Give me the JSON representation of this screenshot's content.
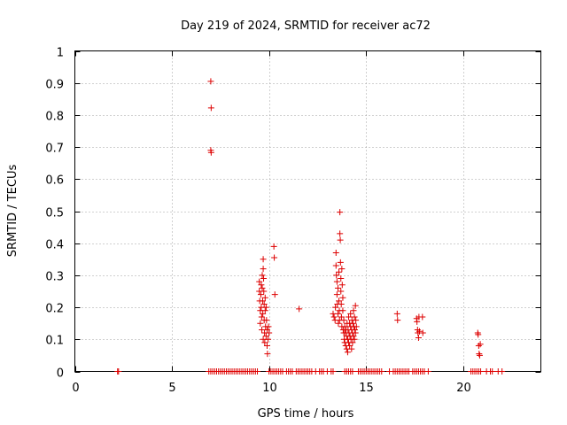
{
  "chart_data": {
    "type": "scatter",
    "title": "Day 219 of 2024, SRMTID for receiver ac72",
    "xlabel": "GPS time / hours",
    "ylabel": "SRMTID / TECUs",
    "xlim": [
      0,
      24
    ],
    "ylim": [
      0,
      1
    ],
    "xticks": [
      0,
      5,
      10,
      15,
      20
    ],
    "yticks": [
      0,
      0.1,
      0.2,
      0.3,
      0.4,
      0.5,
      0.6,
      0.7,
      0.8,
      0.9,
      1
    ],
    "grid": true,
    "marker": "+",
    "color": "#dd0000",
    "series": [
      {
        "points": [
          [
            2.2,
            0
          ],
          [
            2.25,
            0
          ],
          [
            6.9,
            0
          ],
          [
            7.0,
            0
          ],
          [
            7.1,
            0
          ],
          [
            7.2,
            0
          ],
          [
            7.3,
            0
          ],
          [
            7.4,
            0
          ],
          [
            7.5,
            0
          ],
          [
            7.6,
            0
          ],
          [
            7.7,
            0
          ],
          [
            7.8,
            0
          ],
          [
            7.9,
            0
          ],
          [
            8.0,
            0
          ],
          [
            8.1,
            0
          ],
          [
            8.2,
            0
          ],
          [
            8.3,
            0
          ],
          [
            8.4,
            0
          ],
          [
            8.5,
            0
          ],
          [
            8.6,
            0
          ],
          [
            8.7,
            0
          ],
          [
            8.8,
            0
          ],
          [
            8.9,
            0
          ],
          [
            9.0,
            0
          ],
          [
            9.1,
            0
          ],
          [
            9.2,
            0
          ],
          [
            9.3,
            0
          ],
          [
            9.4,
            0
          ],
          [
            10.0,
            0
          ],
          [
            10.1,
            0
          ],
          [
            10.2,
            0
          ],
          [
            10.3,
            0
          ],
          [
            10.4,
            0
          ],
          [
            10.5,
            0
          ],
          [
            10.6,
            0
          ],
          [
            10.7,
            0
          ],
          [
            10.9,
            0
          ],
          [
            11.0,
            0
          ],
          [
            11.1,
            0
          ],
          [
            11.2,
            0
          ],
          [
            11.4,
            0
          ],
          [
            11.5,
            0
          ],
          [
            11.6,
            0
          ],
          [
            11.7,
            0
          ],
          [
            11.8,
            0
          ],
          [
            11.9,
            0
          ],
          [
            12.0,
            0
          ],
          [
            12.1,
            0
          ],
          [
            12.2,
            0
          ],
          [
            12.4,
            0
          ],
          [
            12.6,
            0
          ],
          [
            12.7,
            0
          ],
          [
            12.8,
            0
          ],
          [
            13.0,
            0
          ],
          [
            13.2,
            0
          ],
          [
            13.3,
            0
          ],
          [
            13.9,
            0
          ],
          [
            14.0,
            0
          ],
          [
            14.1,
            0
          ],
          [
            14.2,
            0
          ],
          [
            14.3,
            0
          ],
          [
            14.6,
            0
          ],
          [
            14.7,
            0
          ],
          [
            14.8,
            0
          ],
          [
            14.9,
            0
          ],
          [
            15.0,
            0
          ],
          [
            15.1,
            0
          ],
          [
            15.2,
            0
          ],
          [
            15.3,
            0
          ],
          [
            15.4,
            0
          ],
          [
            15.5,
            0
          ],
          [
            15.6,
            0
          ],
          [
            15.7,
            0
          ],
          [
            15.8,
            0
          ],
          [
            16.2,
            0
          ],
          [
            16.4,
            0
          ],
          [
            16.5,
            0
          ],
          [
            16.6,
            0
          ],
          [
            16.7,
            0
          ],
          [
            16.8,
            0
          ],
          [
            16.9,
            0
          ],
          [
            17.0,
            0
          ],
          [
            17.1,
            0
          ],
          [
            17.2,
            0
          ],
          [
            17.4,
            0
          ],
          [
            17.5,
            0
          ],
          [
            17.6,
            0
          ],
          [
            17.7,
            0
          ],
          [
            17.8,
            0
          ],
          [
            17.9,
            0
          ],
          [
            18.0,
            0
          ],
          [
            18.2,
            0
          ],
          [
            20.4,
            0
          ],
          [
            20.5,
            0
          ],
          [
            20.6,
            0
          ],
          [
            20.7,
            0
          ],
          [
            20.8,
            0
          ],
          [
            20.9,
            0
          ],
          [
            21.2,
            0
          ],
          [
            21.4,
            0
          ],
          [
            21.5,
            0
          ],
          [
            21.8,
            0
          ],
          [
            22.0,
            0
          ],
          [
            7.0,
            0.905
          ],
          [
            7.02,
            0.822
          ],
          [
            7.0,
            0.69
          ],
          [
            7.02,
            0.683
          ],
          [
            9.5,
            0.28
          ],
          [
            9.5,
            0.25
          ],
          [
            9.52,
            0.22
          ],
          [
            9.55,
            0.19
          ],
          [
            9.55,
            0.15
          ],
          [
            9.58,
            0.24
          ],
          [
            9.6,
            0.27
          ],
          [
            9.6,
            0.2
          ],
          [
            9.62,
            0.17
          ],
          [
            9.63,
            0.13
          ],
          [
            9.65,
            0.3
          ],
          [
            9.65,
            0.26
          ],
          [
            9.67,
            0.22
          ],
          [
            9.68,
            0.18
          ],
          [
            9.7,
            0.35
          ],
          [
            9.7,
            0.32
          ],
          [
            9.7,
            0.1
          ],
          [
            9.72,
            0.29
          ],
          [
            9.73,
            0.25
          ],
          [
            9.75,
            0.21
          ],
          [
            9.75,
            0.16
          ],
          [
            9.77,
            0.12
          ],
          [
            9.78,
            0.09
          ],
          [
            9.8,
            0.23
          ],
          [
            9.8,
            0.19
          ],
          [
            9.82,
            0.14
          ],
          [
            9.85,
            0.2
          ],
          [
            9.85,
            0.11
          ],
          [
            9.87,
            0.16
          ],
          [
            9.9,
            0.13
          ],
          [
            9.9,
            0.08
          ],
          [
            9.92,
            0.055
          ],
          [
            9.95,
            0.1
          ],
          [
            9.97,
            0.14
          ],
          [
            10.0,
            0.12
          ],
          [
            10.25,
            0.39
          ],
          [
            10.27,
            0.355
          ],
          [
            10.3,
            0.24
          ],
          [
            11.55,
            0.195
          ],
          [
            13.3,
            0.18
          ],
          [
            13.35,
            0.17
          ],
          [
            13.4,
            0.16
          ],
          [
            13.42,
            0.2
          ],
          [
            13.45,
            0.37
          ],
          [
            13.45,
            0.33
          ],
          [
            13.47,
            0.3
          ],
          [
            13.5,
            0.28
          ],
          [
            13.5,
            0.24
          ],
          [
            13.52,
            0.21
          ],
          [
            13.55,
            0.26
          ],
          [
            13.55,
            0.18
          ],
          [
            13.57,
            0.15
          ],
          [
            13.6,
            0.31
          ],
          [
            13.6,
            0.22
          ],
          [
            13.62,
            0.19
          ],
          [
            13.63,
            0.16
          ],
          [
            13.65,
            0.497
          ],
          [
            13.65,
            0.43
          ],
          [
            13.67,
            0.41
          ],
          [
            13.68,
            0.34
          ],
          [
            13.7,
            0.29
          ],
          [
            13.7,
            0.25
          ],
          [
            13.72,
            0.21
          ],
          [
            13.73,
            0.17
          ],
          [
            13.75,
            0.32
          ],
          [
            13.75,
            0.14
          ],
          [
            13.77,
            0.27
          ],
          [
            13.8,
            0.23
          ],
          [
            13.8,
            0.19
          ],
          [
            13.82,
            0.13
          ],
          [
            13.85,
            0.16
          ],
          [
            13.85,
            0.12
          ],
          [
            13.87,
            0.1
          ],
          [
            13.9,
            0.14
          ],
          [
            13.9,
            0.09
          ],
          [
            13.92,
            0.12
          ],
          [
            13.95,
            0.08
          ],
          [
            13.97,
            0.13
          ],
          [
            14.0,
            0.11
          ],
          [
            14.0,
            0.07
          ],
          [
            14.02,
            0.15
          ],
          [
            14.05,
            0.1
          ],
          [
            14.05,
            0.06
          ],
          [
            14.07,
            0.13
          ],
          [
            14.1,
            0.09
          ],
          [
            14.1,
            0.17
          ],
          [
            14.12,
            0.12
          ],
          [
            14.15,
            0.08
          ],
          [
            14.15,
            0.15
          ],
          [
            14.17,
            0.11
          ],
          [
            14.2,
            0.14
          ],
          [
            14.2,
            0.18
          ],
          [
            14.22,
            0.1
          ],
          [
            14.25,
            0.13
          ],
          [
            14.25,
            0.07
          ],
          [
            14.27,
            0.16
          ],
          [
            14.3,
            0.12
          ],
          [
            14.3,
            0.09
          ],
          [
            14.32,
            0.15
          ],
          [
            14.35,
            0.11
          ],
          [
            14.35,
            0.19
          ],
          [
            14.37,
            0.14
          ],
          [
            14.4,
            0.1
          ],
          [
            14.4,
            0.17
          ],
          [
            14.42,
            0.13
          ],
          [
            14.45,
            0.205
          ],
          [
            14.45,
            0.12
          ],
          [
            14.47,
            0.16
          ],
          [
            14.5,
            0.14
          ],
          [
            16.6,
            0.18
          ],
          [
            16.62,
            0.16
          ],
          [
            17.6,
            0.165
          ],
          [
            17.62,
            0.155
          ],
          [
            17.65,
            0.13
          ],
          [
            17.67,
            0.12
          ],
          [
            17.7,
            0.105
          ],
          [
            17.72,
            0.17
          ],
          [
            17.75,
            0.125
          ],
          [
            17.9,
            0.17
          ],
          [
            17.92,
            0.12
          ],
          [
            20.75,
            0.12
          ],
          [
            20.77,
            0.115
          ],
          [
            20.8,
            0.08
          ],
          [
            20.82,
            0.055
          ],
          [
            20.85,
            0.05
          ],
          [
            20.88,
            0.085
          ]
        ]
      }
    ]
  }
}
